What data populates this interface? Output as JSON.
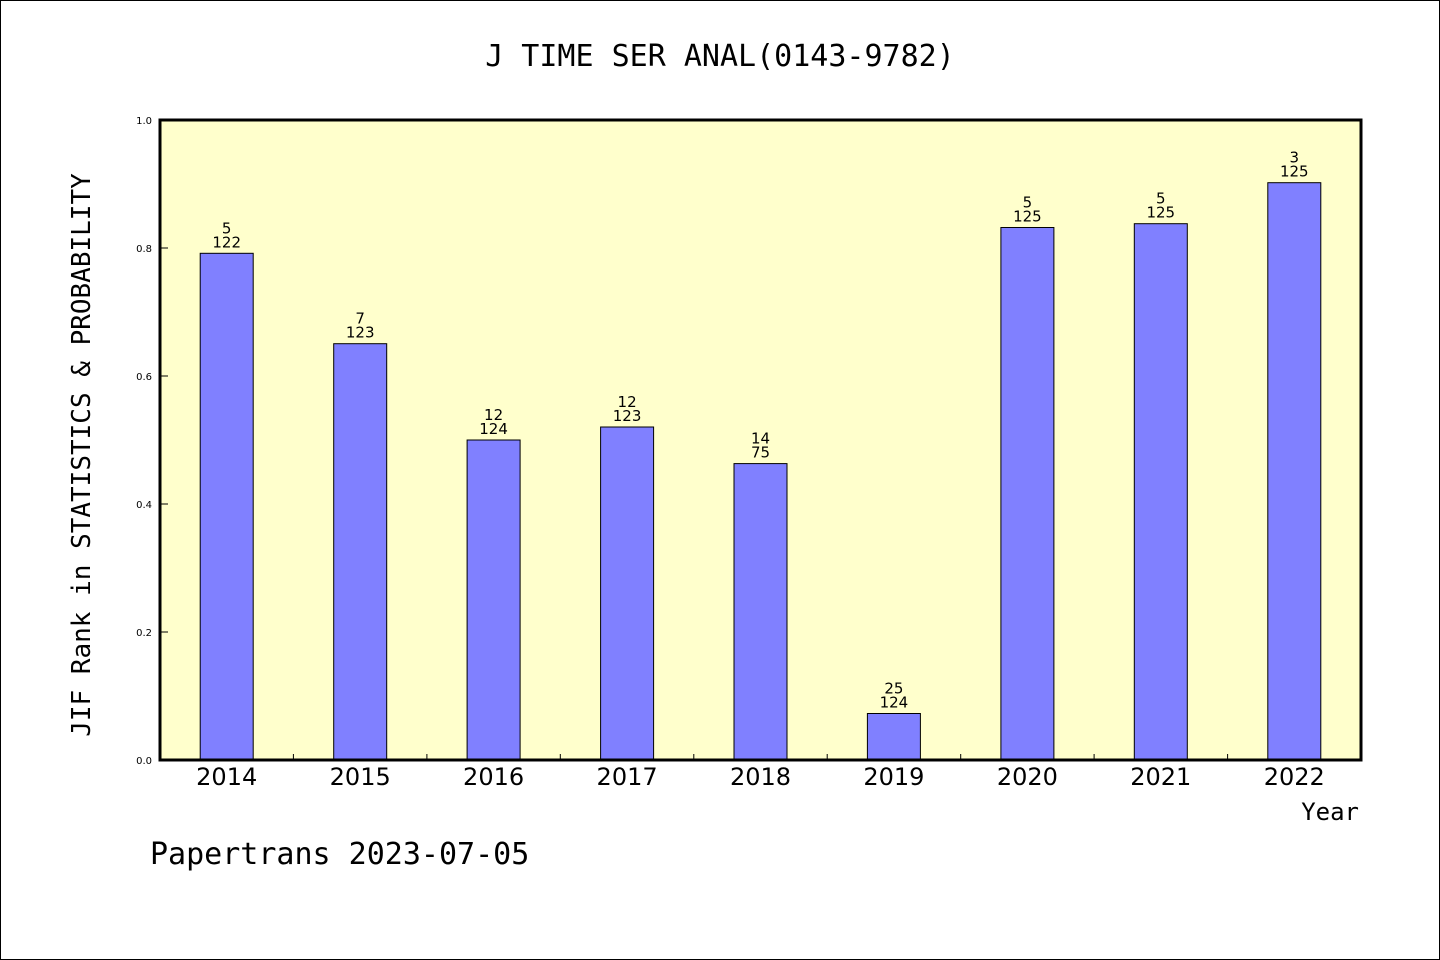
{
  "chart_data": {
    "type": "bar",
    "title": "J TIME SER ANAL(0143-9782)",
    "xlabel": "Year",
    "ylabel": "JIF Rank in STATISTICS & PROBABILITY",
    "categories": [
      "2014",
      "2015",
      "2016",
      "2017",
      "2018",
      "2019",
      "2020",
      "2021",
      "2022"
    ],
    "values": [
      0.7917,
      0.6504,
      0.5,
      0.5203,
      0.4632,
      0.0726,
      0.832,
      0.838,
      0.902
    ],
    "data_labels": [
      {
        "top": "5",
        "bottom": "122"
      },
      {
        "top": "7",
        "bottom": "123"
      },
      {
        "top": "12",
        "bottom": "124"
      },
      {
        "top": "12",
        "bottom": "123"
      },
      {
        "top": "14",
        "bottom": "75"
      },
      {
        "top": "25",
        "bottom": "124"
      },
      {
        "top": "5",
        "bottom": "125"
      },
      {
        "top": "5",
        "bottom": "125"
      },
      {
        "top": "3",
        "bottom": "125"
      }
    ],
    "yticks": [
      "0.0",
      "0.2",
      "0.4",
      "0.6",
      "0.8",
      "1.0"
    ],
    "ylim": [
      0,
      1.0
    ],
    "grid": false,
    "legend": "none",
    "colors": {
      "plot_background": "#ffffcc",
      "bar_fill": "#8080ff",
      "bar_stroke": "#000000"
    }
  },
  "footer": {
    "credit": "Papertrans 2023-07-05"
  }
}
